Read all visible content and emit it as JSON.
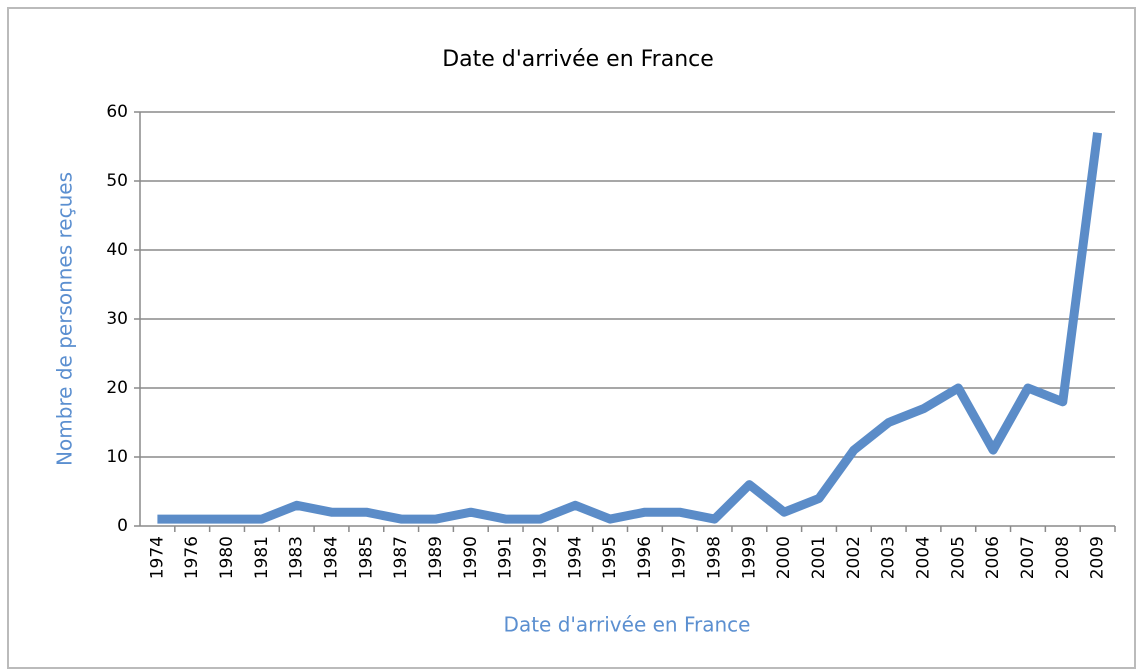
{
  "chart_data": {
    "type": "line",
    "title": "Date d'arrivée en France",
    "x_label": "Date d'arrivée en France",
    "y_label": "Nombre de personnes reçues",
    "categories": [
      "1974",
      "1976",
      "1980",
      "1981",
      "1983",
      "1984",
      "1985",
      "1987",
      "1989",
      "1990",
      "1991",
      "1992",
      "1994",
      "1995",
      "1996",
      "1997",
      "1998",
      "1999",
      "2000",
      "2001",
      "2002",
      "2003",
      "2004",
      "2005",
      "2006",
      "2007",
      "2008",
      "2009"
    ],
    "values": [
      1,
      1,
      1,
      1,
      3,
      2,
      2,
      1,
      1,
      2,
      1,
      1,
      3,
      1,
      2,
      2,
      1,
      6,
      2,
      4,
      11,
      15,
      17,
      20,
      11,
      20,
      18,
      57
    ],
    "color": "#5b8cc8",
    "ylim": [
      0,
      60
    ],
    "yticks": [
      0,
      10,
      20,
      30,
      40,
      50,
      60
    ],
    "grid": true
  }
}
